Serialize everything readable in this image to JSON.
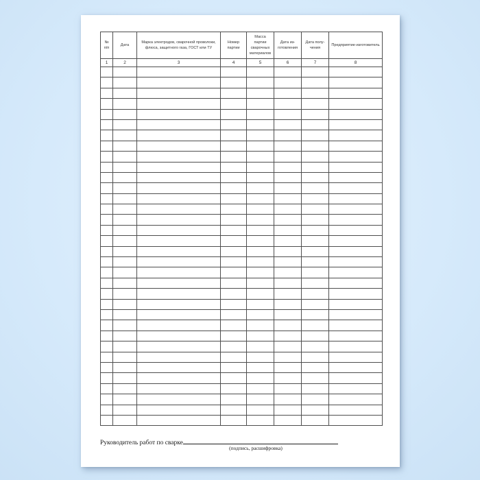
{
  "document": {
    "table": {
      "columns": [
        {
          "header": "№\nп/п",
          "number": "1"
        },
        {
          "header": "Дата",
          "number": "2"
        },
        {
          "header": "Марка электродов, сварочной проволоки,\nфлюса, защитного газа, ГОСТ или ТУ",
          "number": "3"
        },
        {
          "header": "Номер\nпартии",
          "number": "4"
        },
        {
          "header": "Масса\nпартии\nсварочных\nматериалов",
          "number": "5"
        },
        {
          "header": "Дата из-\nготовления",
          "number": "6"
        },
        {
          "header": "Дата полу-\nчения",
          "number": "7"
        },
        {
          "header": "Предприятие-изготовитель",
          "number": "8"
        }
      ],
      "empty_row_count": 34
    },
    "footer": {
      "signature_label": "Руководитель работ по сварке",
      "signature_hint": "(подпись, расшифровка)"
    },
    "colors": {
      "background_blue": "#d6eafb",
      "page_white": "#ffffff",
      "table_border": "#4d4d4d",
      "text": "#1a1a1a"
    }
  }
}
